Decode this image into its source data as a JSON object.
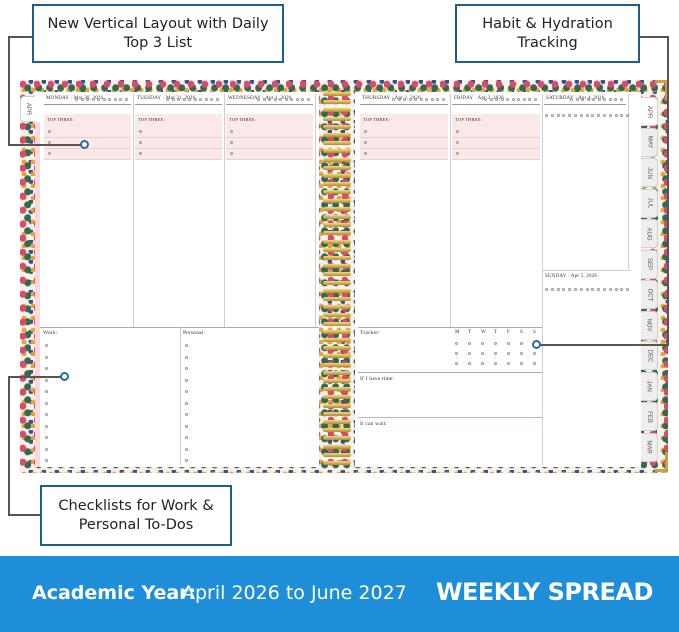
{
  "callouts": [
    {
      "text": "New Vertical Layout with Daily Top 3 List"
    },
    {
      "text": "Habit & Hydration Tracking"
    },
    {
      "text": "Checklists for Work & Personal To-Dos"
    }
  ],
  "planner": {
    "left_tab": "APR",
    "left_days": [
      "MONDAY · Mar 30, 2026",
      "TUESDAY · Mar 31, 2026",
      "WEDNESDAY · Apr 1, 2026"
    ],
    "right_days": [
      "THURSDAY · Apr 2, 2026",
      "FRIDAY · Apr 3, 2026",
      "SATURDAY · Apr 4, 2026"
    ],
    "sunday": "SUNDAY · Apr 5, 2026",
    "top_three": "TOP THREE:",
    "work": "Work:",
    "personal": "Personal:",
    "tracker": "Tracker:",
    "tracker_days": [
      "M",
      "T",
      "W",
      "T",
      "F",
      "S",
      "S"
    ],
    "if_time": "If I have time:",
    "can_wait": "It can wait:",
    "months": [
      "APR",
      "MAY",
      "JUN",
      "JUL",
      "AUG",
      "SEP",
      "OCT",
      "NOV",
      "DEC",
      "JAN",
      "FEB",
      "MAR"
    ]
  },
  "banner": {
    "label": "Academic Year:",
    "range": "April 2026 to June 2027",
    "title": "WEEKLY SPREAD"
  }
}
